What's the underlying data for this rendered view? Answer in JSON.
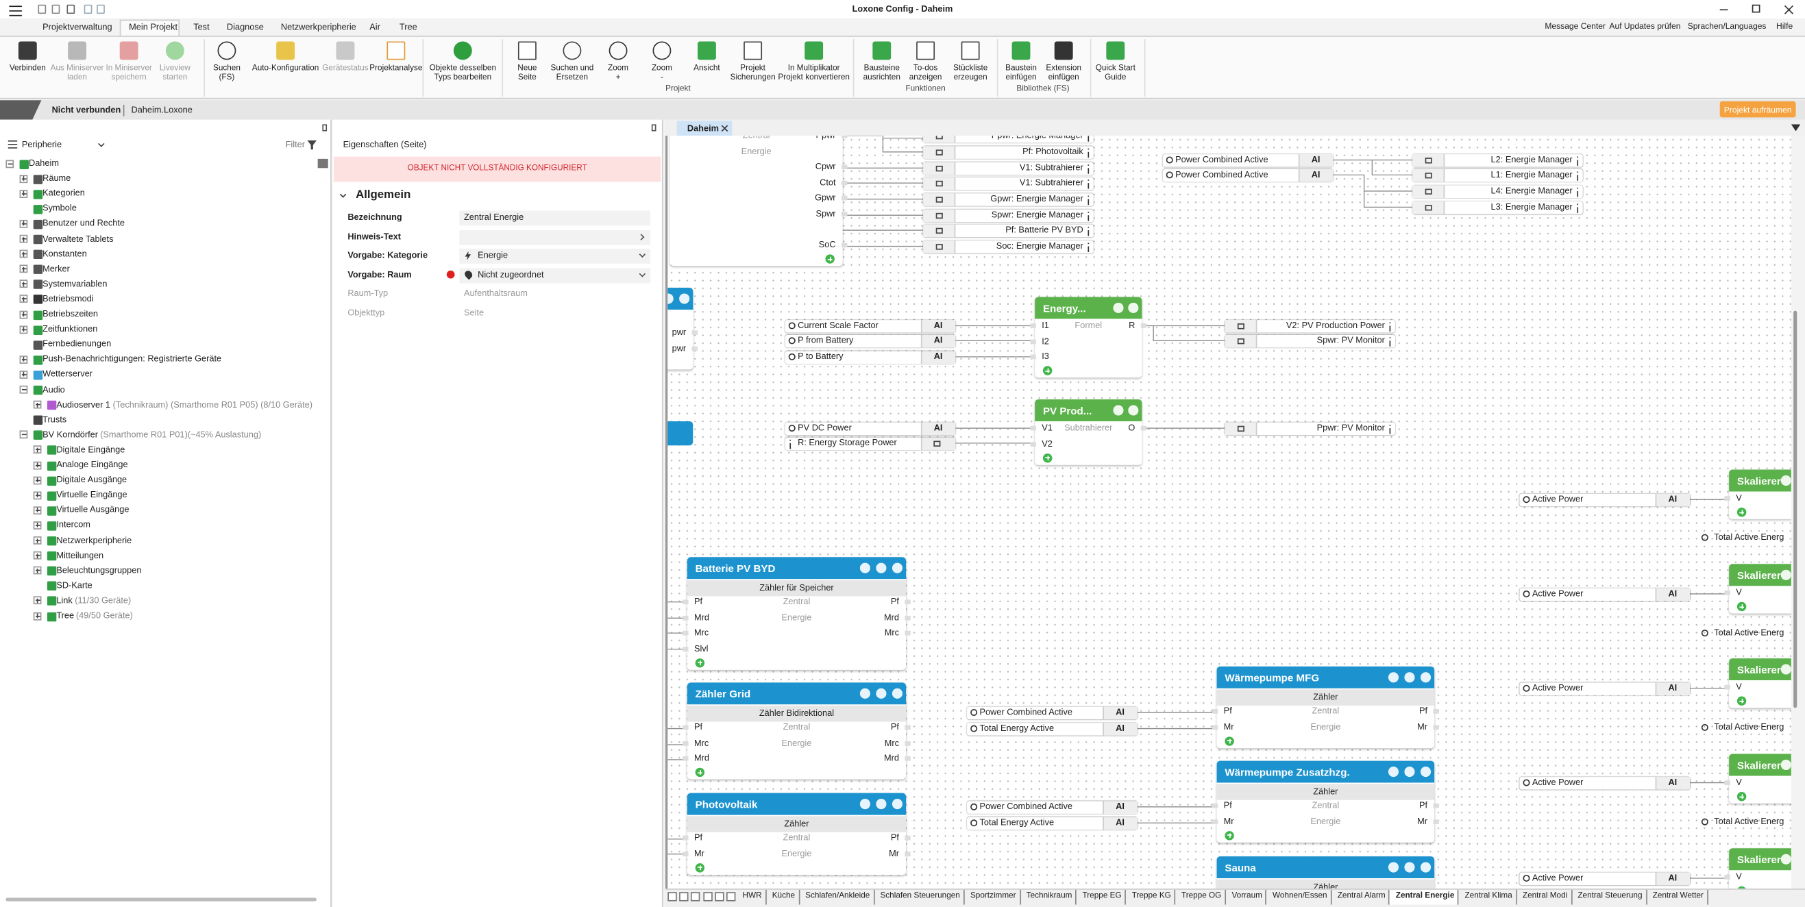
{
  "title_bar": {
    "title": "Loxone Config - Daheim"
  },
  "menu": {
    "tabs": [
      "Projektverwaltung",
      "Mein Projekt",
      "Test",
      "Diagnose",
      "Netzwerkperipherie",
      "Air",
      "Tree"
    ],
    "right": [
      "Message Center",
      "Auf Updates prüfen",
      "Sprachen/Languages",
      "Hilfe"
    ]
  },
  "ribbon": {
    "buttons": [
      {
        "lines": [
          "Verbinden"
        ]
      },
      {
        "lines": [
          "Aus Miniserver",
          "laden"
        ]
      },
      {
        "lines": [
          "In Miniserver",
          "speichern"
        ]
      },
      {
        "lines": [
          "Liveview",
          "starten"
        ]
      },
      {
        "lines": [
          "Suchen",
          "(FS)"
        ]
      },
      {
        "lines": [
          "Auto-Konfiguration"
        ]
      },
      {
        "lines": [
          "Gerätestatus"
        ]
      },
      {
        "lines": [
          "Projektanalyse"
        ]
      },
      {
        "lines": [
          "Objekte desselben",
          "Typs bearbeiten"
        ]
      },
      {
        "lines": [
          "Neue",
          "Seite"
        ]
      },
      {
        "lines": [
          "Suchen und",
          "Ersetzen"
        ]
      },
      {
        "lines": [
          "Zoom",
          "+"
        ]
      },
      {
        "lines": [
          "Zoom",
          "-"
        ]
      },
      {
        "lines": [
          "Ansicht"
        ]
      },
      {
        "lines": [
          "Projekt",
          "Sicherungen"
        ]
      },
      {
        "lines": [
          "In Multiplikator",
          "Projekt konvertieren"
        ]
      },
      {
        "lines": [
          "Bausteine",
          "ausrichten"
        ]
      },
      {
        "lines": [
          "To-dos",
          "anzeigen"
        ]
      },
      {
        "lines": [
          "Stückliste",
          "erzeugen"
        ]
      },
      {
        "lines": [
          "Baustein",
          "einfügen"
        ]
      },
      {
        "lines": [
          "Extension",
          "einfügen"
        ]
      },
      {
        "lines": [
          "Quick Start",
          "Guide"
        ]
      }
    ],
    "groups": [
      "Projekt",
      "Funktionen",
      "Bibliothek (FS)"
    ]
  },
  "status_bar": {
    "connection": "Nicht verbunden",
    "file": "Daheim.Loxone",
    "action": "Projekt aufräumen"
  },
  "periphery": {
    "title": "Peripherie",
    "filter": "Filter",
    "tree": [
      {
        "label": "Daheim",
        "children": [
          {
            "label": "Räume"
          },
          {
            "label": "Kategorien"
          },
          {
            "label": "Symbole"
          },
          {
            "label": "Benutzer und Rechte"
          },
          {
            "label": "Verwaltete Tablets"
          },
          {
            "label": "Konstanten"
          },
          {
            "label": "Merker"
          },
          {
            "label": "Systemvariablen"
          },
          {
            "label": "Betriebsmodi"
          },
          {
            "label": "Betriebszeiten"
          },
          {
            "label": "Zeitfunktionen"
          },
          {
            "label": "Fernbedienungen"
          },
          {
            "label": "Push-Benachrichtigungen: Registrierte Geräte"
          },
          {
            "label": "Wetterserver"
          },
          {
            "label": "Audio",
            "children": [
              {
                "label": "Audioserver 1",
                "detail": "(Technikraum) (Smarthome R01 P05) (8/10 Geräte)"
              }
            ]
          },
          {
            "label": "Trusts"
          },
          {
            "label": "BV Korndörfer",
            "detail": "(Smarthome R01 P01)(~45% Auslastung)",
            "children": [
              {
                "label": "Digitale Eingänge"
              },
              {
                "label": "Analoge Eingänge"
              },
              {
                "label": "Digitale Ausgänge"
              },
              {
                "label": "Virtuelle Eingänge"
              },
              {
                "label": "Virtuelle Ausgänge"
              },
              {
                "label": "Intercom"
              },
              {
                "label": "Netzwerkperipherie"
              },
              {
                "label": "Mitteilungen"
              },
              {
                "label": "Beleuchtungsgruppen"
              },
              {
                "label": "SD-Karte"
              },
              {
                "label": "Link",
                "detail": "(11/30 Geräte)"
              },
              {
                "label": "Tree",
                "detail": "(49/50 Geräte)"
              }
            ]
          }
        ]
      }
    ]
  },
  "properties": {
    "header": "Eigenschaften (Seite)",
    "warning": "OBJEKT NICHT VOLLSTÄNDIG KONFIGURIERT",
    "section": "Allgemein",
    "rows": [
      {
        "label": "Bezeichnung",
        "value": "Zentral Energie"
      },
      {
        "label": "Hinweis-Text"
      },
      {
        "label": "Vorgabe: Kategorie",
        "value": "Energie"
      },
      {
        "label": "Vorgabe: Raum",
        "value": "Nicht zugeordnet"
      },
      {
        "label": "Raum-Typ",
        "value": "Aufenthaltsraum"
      },
      {
        "label": "Objekttyp",
        "value": "Seite"
      }
    ]
  },
  "canvas": {
    "tab": "Daheim",
    "blocks": [
      {
        "center": [
          "Zentral",
          "Energie"
        ],
        "outputs": [
          "Ppwr",
          null,
          "Cpwr",
          "Ctot",
          "Gpwr",
          "Spwr",
          null,
          "SoC"
        ]
      },
      {
        "outputs": [
          "pwr",
          "pwr"
        ]
      },
      {
        "title": "Energy...",
        "inputs": [
          "I1",
          "I2",
          "I3"
        ],
        "center": [
          "Formel"
        ],
        "outputs": [
          "R"
        ]
      },
      {
        "title": "PV Prod...",
        "inputs": [
          "V1",
          "V2"
        ],
        "center": [
          "Subtrahierer"
        ],
        "outputs": [
          "O"
        ]
      },
      {
        "title": "Batterie PV BYD",
        "subtitle": "Zähler für Speicher",
        "inputs": [
          "Pf",
          "Mrd",
          "Mrc",
          "Slvl"
        ],
        "center": [
          "Zentral",
          "Energie"
        ],
        "outputs": [
          "Pf",
          "Mrd",
          "Mrc"
        ]
      },
      {
        "title": "Zähler Grid",
        "subtitle": "Zähler Bidirektional",
        "inputs": [
          "Pf",
          "Mrc",
          "Mrd"
        ],
        "center": [
          "Zentral",
          "Energie"
        ],
        "outputs": [
          "Pf",
          "Mrc",
          "Mrd"
        ]
      },
      {
        "title": "Photovoltaik",
        "subtitle": "Zähler",
        "inputs": [
          "Pf",
          "Mr"
        ],
        "center": [
          "Zentral",
          "Energie"
        ],
        "outputs": [
          "Pf",
          "Mr"
        ]
      },
      {
        "title": "Wärmepumpe MFG",
        "subtitle": "Zähler",
        "inputs": [
          "Pf",
          "Mr"
        ],
        "center": [
          "Zentral",
          "Energie"
        ],
        "outputs": [
          "Pf",
          "Mr"
        ]
      },
      {
        "title": "Wärmepumpe Zusatzhzg.",
        "subtitle": "Zähler",
        "inputs": [
          "Pf",
          "Mr"
        ],
        "center": [
          "Zentral",
          "Energie"
        ],
        "outputs": [
          "Pf",
          "Mr"
        ]
      },
      {
        "title": "Sauna",
        "subtitle": "Zähler"
      },
      {
        "title": "Skalierer",
        "inputs": [
          "V"
        ]
      },
      {
        "title": "Skalierer",
        "inputs": [
          "V"
        ]
      },
      {
        "title": "Skalierer",
        "inputs": [
          "V"
        ]
      },
      {
        "title": "Skalierer",
        "inputs": [
          "V"
        ]
      },
      {
        "title": "Skalierer",
        "inputs": [
          "V"
        ]
      }
    ],
    "inputs": [
      {
        "label": "Power Combined Active",
        "tag": "AI"
      },
      {
        "label": "Power Combined Active",
        "tag": "AI"
      },
      {
        "label": "Current Scale Factor",
        "tag": "AI"
      },
      {
        "label": "P from Battery",
        "tag": "AI"
      },
      {
        "label": "P to Battery",
        "tag": "AI"
      },
      {
        "label": "PV DC Power",
        "tag": "AI"
      },
      {
        "label": "R: Energy Storage Power"
      },
      {
        "label": "Power Combined Active",
        "tag": "AI"
      },
      {
        "label": "Total Energy Active",
        "tag": "AI"
      },
      {
        "label": "Power Combined Active",
        "tag": "AI"
      },
      {
        "label": "Total Energy Active",
        "tag": "AI"
      },
      {
        "label": "Active Power",
        "tag": "AI"
      },
      {
        "label": "Active Power",
        "tag": "AI"
      },
      {
        "label": "Active Power",
        "tag": "AI"
      },
      {
        "label": "Active Power",
        "tag": "AI"
      },
      {
        "label": "Active Power",
        "tag": "AI"
      }
    ],
    "refs": [
      "Ppwr: Energie Manager",
      "Pf: Photovoltaik",
      "V1: Subtrahierer",
      "V1: Subtrahierer",
      "Gpwr: Energie Manager",
      "Spwr: Energie Manager",
      "Pf: Batterie PV BYD",
      "Soc: Energie Manager",
      "L2: Energie Manager",
      "L1: Energie Manager",
      "L4: Energie Manager",
      "L3: Energie Manager",
      "V2: PV Production Power",
      "Spwr: PV Monitor",
      "Ppwr: PV Monitor"
    ],
    "notes": [
      "Total Active Energ",
      "Total Active Energ",
      "Total Active Energ",
      "Total Active Energ"
    ]
  },
  "page_tabs": [
    "HWR",
    "Küche",
    "Schlafen/Ankleide",
    "Schlafen Steuerungen",
    "Sportzimmer",
    "Technikraum",
    "Treppe EG",
    "Treppe KG",
    "Treppe OG",
    "Vorraum",
    "Wohnen/Essen",
    "Zentral Alarm",
    "Zentral Energie",
    "Zentral Klima",
    "Zentral Modi",
    "Zentral Steuerung",
    "Zentral Wetter"
  ]
}
